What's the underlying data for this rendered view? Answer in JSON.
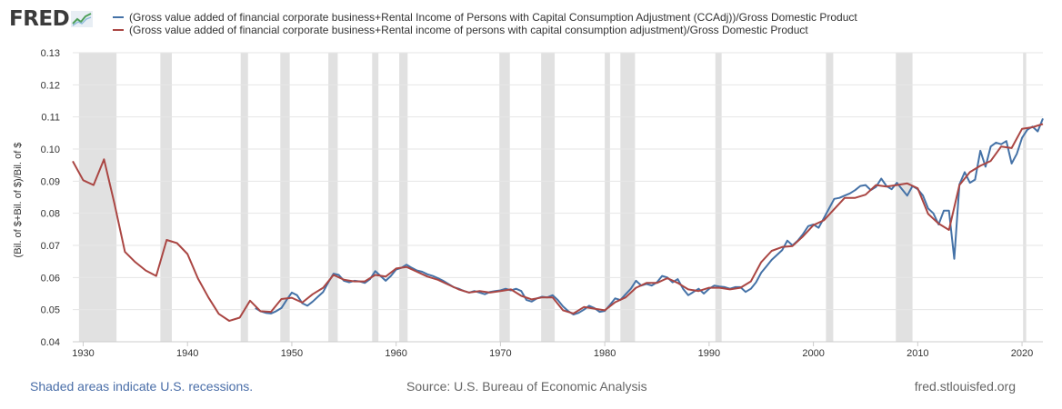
{
  "header": {
    "logo_text": "FRED"
  },
  "footer": {
    "recessions_note": "Shaded areas indicate U.S. recessions.",
    "source": "Source: U.S. Bureau of Economic Analysis",
    "site": "fred.stlouisfed.org"
  },
  "colors": {
    "series_blue": "#4572a7",
    "series_red": "#aa4643",
    "recession_shade": "#e1e1e1",
    "grid": "#e6e6e6"
  },
  "chart_data": {
    "type": "line",
    "title": "",
    "xlabel": "",
    "ylabel": "(Bil. of $+Bil. of $)/Bil. of $",
    "xlim": [
      1929,
      2022
    ],
    "ylim": [
      0.04,
      0.13
    ],
    "x_ticks": [
      1930,
      1940,
      1950,
      1960,
      1970,
      1980,
      1990,
      2000,
      2010,
      2020
    ],
    "y_ticks": [
      "0.04",
      "0.05",
      "0.06",
      "0.07",
      "0.08",
      "0.09",
      "0.10",
      "0.11",
      "0.12",
      "0.13"
    ],
    "grid": true,
    "legend_position": "top",
    "recessions": [
      [
        1929.6,
        1933.2
      ],
      [
        1937.4,
        1938.5
      ],
      [
        1945.1,
        1945.8
      ],
      [
        1948.9,
        1949.8
      ],
      [
        1953.5,
        1954.4
      ],
      [
        1957.7,
        1958.3
      ],
      [
        1960.3,
        1961.1
      ],
      [
        1969.9,
        1970.9
      ],
      [
        1973.9,
        1975.2
      ],
      [
        1980.0,
        1980.5
      ],
      [
        1981.5,
        1982.9
      ],
      [
        1990.6,
        1991.2
      ],
      [
        2001.2,
        2001.9
      ],
      [
        2007.9,
        2009.5
      ],
      [
        2020.1,
        2020.4
      ]
    ],
    "series": [
      {
        "name": "(Gross value added of financial corporate business+Rental Income of Persons with Capital Consumption Adjustment (CCAdj))/Gross Domestic Product",
        "color": "#4572a7",
        "frequency": "quarterly",
        "points": [
          [
            1946.5,
            0.0505
          ],
          [
            1947,
            0.0495
          ],
          [
            1947.5,
            0.049
          ],
          [
            1948,
            0.0488
          ],
          [
            1948.5,
            0.0495
          ],
          [
            1949,
            0.0505
          ],
          [
            1949.5,
            0.053
          ],
          [
            1950,
            0.0553
          ],
          [
            1950.5,
            0.0545
          ],
          [
            1951,
            0.052
          ],
          [
            1951.5,
            0.0512
          ],
          [
            1952,
            0.0525
          ],
          [
            1952.5,
            0.054
          ],
          [
            1953,
            0.0555
          ],
          [
            1953.5,
            0.0585
          ],
          [
            1954,
            0.0612
          ],
          [
            1954.5,
            0.0608
          ],
          [
            1955,
            0.059
          ],
          [
            1955.5,
            0.0585
          ],
          [
            1956,
            0.059
          ],
          [
            1956.5,
            0.0588
          ],
          [
            1957,
            0.0583
          ],
          [
            1957.5,
            0.0595
          ],
          [
            1958,
            0.062
          ],
          [
            1958.5,
            0.0605
          ],
          [
            1959,
            0.059
          ],
          [
            1959.5,
            0.0605
          ],
          [
            1960,
            0.0625
          ],
          [
            1960.5,
            0.063
          ],
          [
            1961,
            0.064
          ],
          [
            1961.5,
            0.063
          ],
          [
            1962,
            0.0622
          ],
          [
            1962.5,
            0.0618
          ],
          [
            1963,
            0.061
          ],
          [
            1963.5,
            0.0605
          ],
          [
            1964,
            0.0598
          ],
          [
            1964.5,
            0.059
          ],
          [
            1965,
            0.058
          ],
          [
            1965.5,
            0.057
          ],
          [
            1966,
            0.0565
          ],
          [
            1966.5,
            0.0558
          ],
          [
            1967,
            0.0553
          ],
          [
            1967.5,
            0.0558
          ],
          [
            1968,
            0.0553
          ],
          [
            1968.5,
            0.0548
          ],
          [
            1969,
            0.0555
          ],
          [
            1969.5,
            0.0558
          ],
          [
            1970,
            0.056
          ],
          [
            1970.5,
            0.0565
          ],
          [
            1971,
            0.056
          ],
          [
            1971.5,
            0.0565
          ],
          [
            1972,
            0.0558
          ],
          [
            1972.5,
            0.053
          ],
          [
            1973,
            0.0525
          ],
          [
            1973.5,
            0.0535
          ],
          [
            1974,
            0.054
          ],
          [
            1974.5,
            0.0538
          ],
          [
            1975,
            0.0545
          ],
          [
            1975.5,
            0.053
          ],
          [
            1976,
            0.051
          ],
          [
            1976.5,
            0.0495
          ],
          [
            1977,
            0.0485
          ],
          [
            1977.5,
            0.049
          ],
          [
            1978,
            0.05
          ],
          [
            1978.5,
            0.0512
          ],
          [
            1979,
            0.0505
          ],
          [
            1979.5,
            0.0493
          ],
          [
            1980,
            0.0496
          ],
          [
            1980.5,
            0.0515
          ],
          [
            1981,
            0.0535
          ],
          [
            1981.5,
            0.053
          ],
          [
            1982,
            0.0548
          ],
          [
            1982.5,
            0.0565
          ],
          [
            1983,
            0.059
          ],
          [
            1983.5,
            0.0575
          ],
          [
            1984,
            0.058
          ],
          [
            1984.5,
            0.0575
          ],
          [
            1985,
            0.0585
          ],
          [
            1985.5,
            0.0605
          ],
          [
            1986,
            0.06
          ],
          [
            1986.5,
            0.0585
          ],
          [
            1987,
            0.0595
          ],
          [
            1987.5,
            0.0565
          ],
          [
            1988,
            0.0545
          ],
          [
            1988.5,
            0.0555
          ],
          [
            1989,
            0.0565
          ],
          [
            1989.5,
            0.055
          ],
          [
            1990,
            0.0565
          ],
          [
            1990.5,
            0.0575
          ],
          [
            1991,
            0.0572
          ],
          [
            1991.5,
            0.057
          ],
          [
            1992,
            0.0565
          ],
          [
            1992.5,
            0.057
          ],
          [
            1993,
            0.057
          ],
          [
            1993.5,
            0.0555
          ],
          [
            1994,
            0.0565
          ],
          [
            1994.5,
            0.0585
          ],
          [
            1995,
            0.0615
          ],
          [
            1995.5,
            0.0635
          ],
          [
            1996,
            0.0655
          ],
          [
            1996.5,
            0.067
          ],
          [
            1997,
            0.0685
          ],
          [
            1997.5,
            0.0715
          ],
          [
            1998,
            0.07
          ],
          [
            1998.5,
            0.0715
          ],
          [
            1999,
            0.0735
          ],
          [
            1999.5,
            0.076
          ],
          [
            2000,
            0.0765
          ],
          [
            2000.5,
            0.0755
          ],
          [
            2001,
            0.0785
          ],
          [
            2001.5,
            0.0815
          ],
          [
            2002,
            0.0845
          ],
          [
            2002.5,
            0.0848
          ],
          [
            2003,
            0.0855
          ],
          [
            2003.5,
            0.0862
          ],
          [
            2004,
            0.0872
          ],
          [
            2004.5,
            0.0885
          ],
          [
            2005,
            0.0888
          ],
          [
            2005.5,
            0.0872
          ],
          [
            2006,
            0.0882
          ],
          [
            2006.5,
            0.0908
          ],
          [
            2007,
            0.0885
          ],
          [
            2007.5,
            0.0875
          ],
          [
            2008,
            0.0895
          ],
          [
            2008.5,
            0.0875
          ],
          [
            2009,
            0.0855
          ],
          [
            2009.5,
            0.0885
          ],
          [
            2010,
            0.0875
          ],
          [
            2010.5,
            0.0855
          ],
          [
            2011,
            0.0815
          ],
          [
            2011.5,
            0.08
          ],
          [
            2012,
            0.0765
          ],
          [
            2012.5,
            0.0808
          ],
          [
            2013,
            0.0808
          ],
          [
            2013.5,
            0.0658
          ],
          [
            2014,
            0.089
          ],
          [
            2014.5,
            0.0928
          ],
          [
            2015,
            0.0895
          ],
          [
            2015.5,
            0.0905
          ],
          [
            2016,
            0.0995
          ],
          [
            2016.5,
            0.0945
          ],
          [
            2017,
            0.1008
          ],
          [
            2017.5,
            0.102
          ],
          [
            2018,
            0.1015
          ],
          [
            2018.5,
            0.1025
          ],
          [
            2019,
            0.0955
          ],
          [
            2019.5,
            0.0985
          ],
          [
            2020,
            0.1035
          ],
          [
            2020.5,
            0.106
          ],
          [
            2021,
            0.107
          ],
          [
            2021.5,
            0.1055
          ],
          [
            2022,
            0.1095
          ]
        ]
      },
      {
        "name": "(Gross value added of financial corporate business+Rental income of persons with capital consumption adjustment)/Gross Domestic Product",
        "color": "#aa4643",
        "frequency": "annual",
        "points": [
          [
            1929,
            0.0962
          ],
          [
            1930,
            0.0903
          ],
          [
            1931,
            0.0888
          ],
          [
            1932,
            0.0968
          ],
          [
            1933,
            0.083
          ],
          [
            1934,
            0.068
          ],
          [
            1935,
            0.0648
          ],
          [
            1936,
            0.0622
          ],
          [
            1937,
            0.0605
          ],
          [
            1938,
            0.0717
          ],
          [
            1939,
            0.0707
          ],
          [
            1940,
            0.0673
          ],
          [
            1941,
            0.0597
          ],
          [
            1942,
            0.0538
          ],
          [
            1943,
            0.0487
          ],
          [
            1944,
            0.0465
          ],
          [
            1945,
            0.0475
          ],
          [
            1946,
            0.0528
          ],
          [
            1947,
            0.0495
          ],
          [
            1948,
            0.0493
          ],
          [
            1949,
            0.0533
          ],
          [
            1950,
            0.0537
          ],
          [
            1951,
            0.0522
          ],
          [
            1952,
            0.0548
          ],
          [
            1953,
            0.0568
          ],
          [
            1954,
            0.0608
          ],
          [
            1955,
            0.0593
          ],
          [
            1956,
            0.0588
          ],
          [
            1957,
            0.0588
          ],
          [
            1958,
            0.0608
          ],
          [
            1959,
            0.0603
          ],
          [
            1960,
            0.0628
          ],
          [
            1961,
            0.0633
          ],
          [
            1962,
            0.0618
          ],
          [
            1963,
            0.0603
          ],
          [
            1964,
            0.0593
          ],
          [
            1965,
            0.0578
          ],
          [
            1966,
            0.0563
          ],
          [
            1967,
            0.0553
          ],
          [
            1968,
            0.0558
          ],
          [
            1969,
            0.0553
          ],
          [
            1970,
            0.0558
          ],
          [
            1971,
            0.0563
          ],
          [
            1972,
            0.0543
          ],
          [
            1973,
            0.0532
          ],
          [
            1974,
            0.0538
          ],
          [
            1975,
            0.0538
          ],
          [
            1976,
            0.0498
          ],
          [
            1977,
            0.0488
          ],
          [
            1978,
            0.0508
          ],
          [
            1979,
            0.0503
          ],
          [
            1980,
            0.0498
          ],
          [
            1981,
            0.0523
          ],
          [
            1982,
            0.0538
          ],
          [
            1983,
            0.0568
          ],
          [
            1984,
            0.0583
          ],
          [
            1985,
            0.0583
          ],
          [
            1986,
            0.0598
          ],
          [
            1987,
            0.0583
          ],
          [
            1988,
            0.0563
          ],
          [
            1989,
            0.0558
          ],
          [
            1990,
            0.0568
          ],
          [
            1991,
            0.0568
          ],
          [
            1992,
            0.0563
          ],
          [
            1993,
            0.0568
          ],
          [
            1994,
            0.0588
          ],
          [
            1995,
            0.0648
          ],
          [
            1996,
            0.0683
          ],
          [
            1997,
            0.0695
          ],
          [
            1998,
            0.0698
          ],
          [
            1999,
            0.0728
          ],
          [
            2000,
            0.0763
          ],
          [
            2001,
            0.0778
          ],
          [
            2002,
            0.0813
          ],
          [
            2003,
            0.0848
          ],
          [
            2004,
            0.0848
          ],
          [
            2005,
            0.0858
          ],
          [
            2006,
            0.0888
          ],
          [
            2007,
            0.0883
          ],
          [
            2008,
            0.0888
          ],
          [
            2009,
            0.0893
          ],
          [
            2010,
            0.0878
          ],
          [
            2011,
            0.0798
          ],
          [
            2012,
            0.0768
          ],
          [
            2013,
            0.0748
          ],
          [
            2014,
            0.0888
          ],
          [
            2015,
            0.0928
          ],
          [
            2016,
            0.0948
          ],
          [
            2017,
            0.0963
          ],
          [
            2018,
            0.1008
          ],
          [
            2019,
            0.1003
          ],
          [
            2020,
            0.1063
          ],
          [
            2021,
            0.1068
          ],
          [
            2022,
            0.1078
          ]
        ]
      }
    ]
  }
}
